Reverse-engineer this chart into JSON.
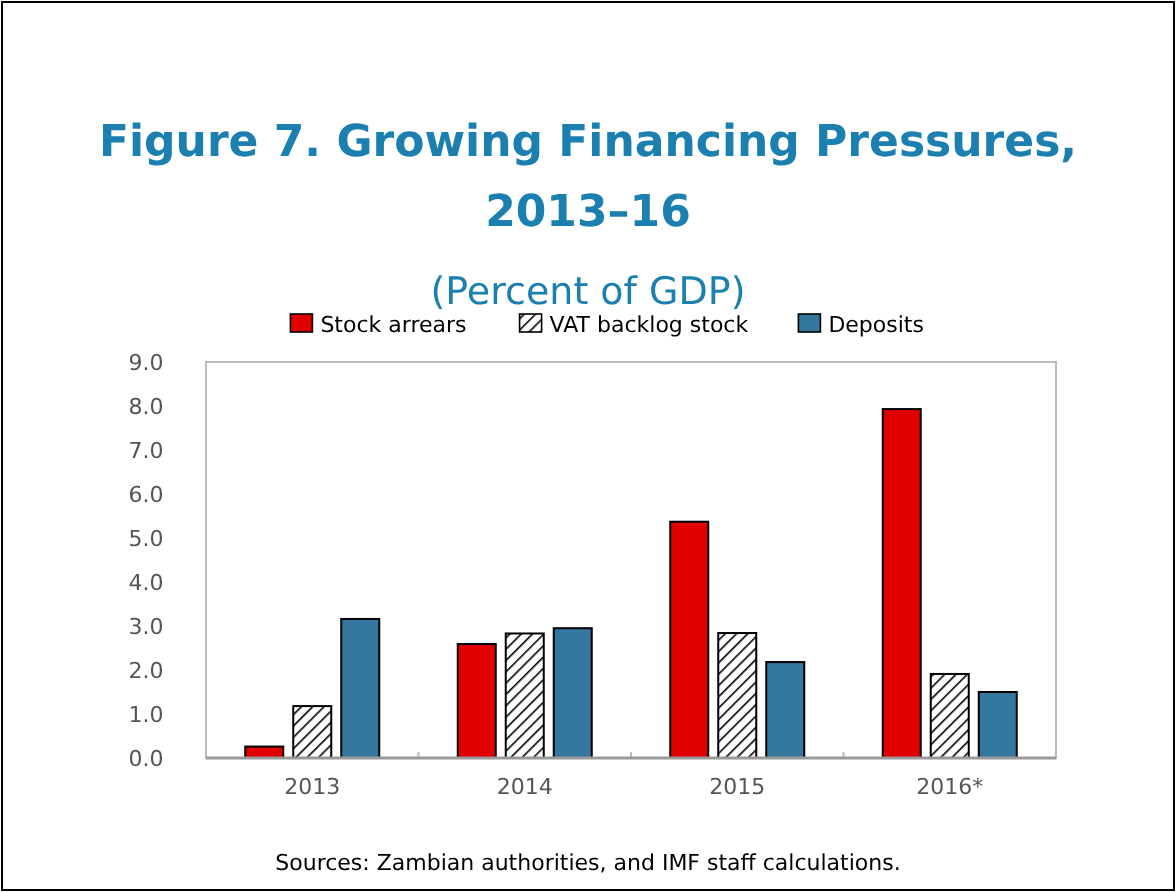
{
  "chart_data": {
    "type": "bar",
    "title": "Figure 7. Growing Financing Pressures, 2013–16",
    "subtitle": "(Percent of GDP)",
    "categories": [
      "2013",
      "2014",
      "2015",
      "2016*"
    ],
    "series": [
      {
        "name": "Stock arrears",
        "color": "#e00000",
        "values": [
          0.26,
          2.59,
          5.37,
          7.93
        ]
      },
      {
        "name": "VAT backlog stock",
        "color": "#000000",
        "values": [
          1.18,
          2.83,
          2.84,
          1.91
        ]
      },
      {
        "name": "Deposits",
        "color": "#34789f",
        "values": [
          3.16,
          2.95,
          2.18,
          1.5
        ]
      }
    ],
    "ylim": [
      0,
      9
    ],
    "yticks": [
      {
        "value": 0,
        "label": "0.0"
      },
      {
        "value": 1,
        "label": "1.0"
      },
      {
        "value": 2,
        "label": "2.0"
      },
      {
        "value": 3,
        "label": "3.0"
      },
      {
        "value": 4,
        "label": "4.0"
      },
      {
        "value": 5,
        "label": "5.0"
      },
      {
        "value": 6,
        "label": "6.0"
      },
      {
        "value": 7,
        "label": "7.0"
      },
      {
        "value": 8,
        "label": "8.0"
      },
      {
        "value": 9,
        "label": "9.0"
      }
    ],
    "grid": false,
    "legend": "top",
    "annotations": [
      "Sources: Zambian authorities, and IMF staff calculations."
    ]
  }
}
